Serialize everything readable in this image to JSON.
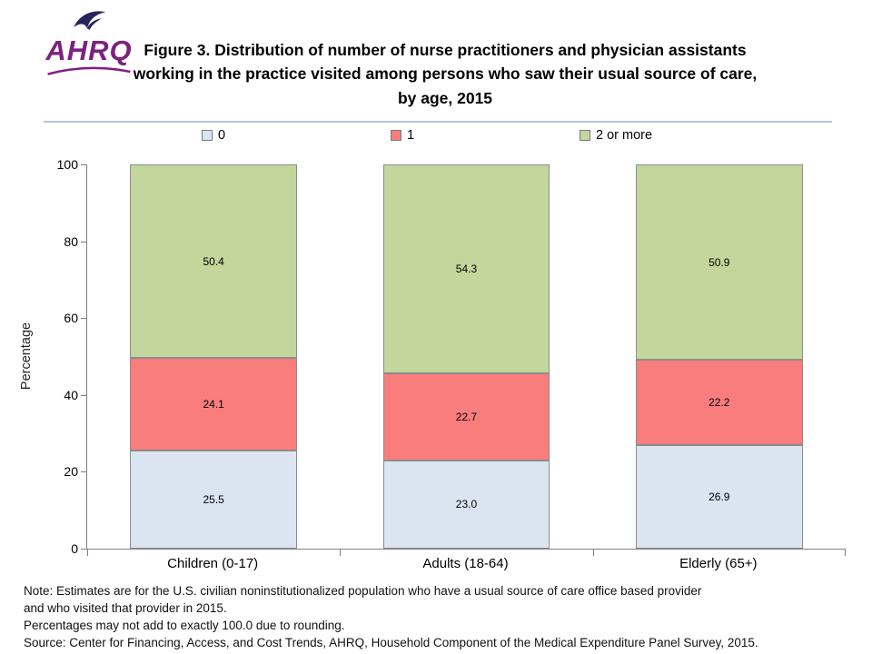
{
  "logo": {
    "org": "AHRQ"
  },
  "title": "Figure 3. Distribution of number of nurse practitioners and physician assistants working in the practice visited among persons who saw their usual source of care, by age, 2015",
  "chart_data": {
    "type": "bar",
    "stacked": true,
    "title": "Figure 3. Distribution of number of nurse practitioners and physician assistants working in the practice visited among persons who saw their usual source of care, by age, 2015",
    "categories": [
      "Children (0-17)",
      "Adults (18-64)",
      "Elderly (65+)"
    ],
    "series": [
      {
        "name": "0",
        "color": "#dbe5f1",
        "values": [
          25.5,
          23.0,
          26.9
        ]
      },
      {
        "name": "1",
        "color": "#f97d7d",
        "values": [
          24.1,
          22.7,
          22.2
        ]
      },
      {
        "name": "2 or more",
        "color": "#c3d69b",
        "values": [
          50.4,
          54.3,
          50.9
        ]
      }
    ],
    "xlabel": "",
    "ylabel": "Percentage",
    "ylim": [
      0,
      100
    ],
    "yticks": [
      0,
      20,
      40,
      60,
      80,
      100
    ],
    "legend_position": "top",
    "grid": false,
    "data_labels": true
  },
  "notes": {
    "lines": [
      "Note: Estimates are for the U.S. civilian noninstitutionalized population who have a usual source of care office based provider",
      "and who visited that provider in 2015.",
      "Percentages may not add to exactly 100.0 due to rounding.",
      "Source: Center for Financing, Access, and Cost Trends, AHRQ, Household Component of the Medical Expenditure Panel Survey, 2015."
    ]
  }
}
